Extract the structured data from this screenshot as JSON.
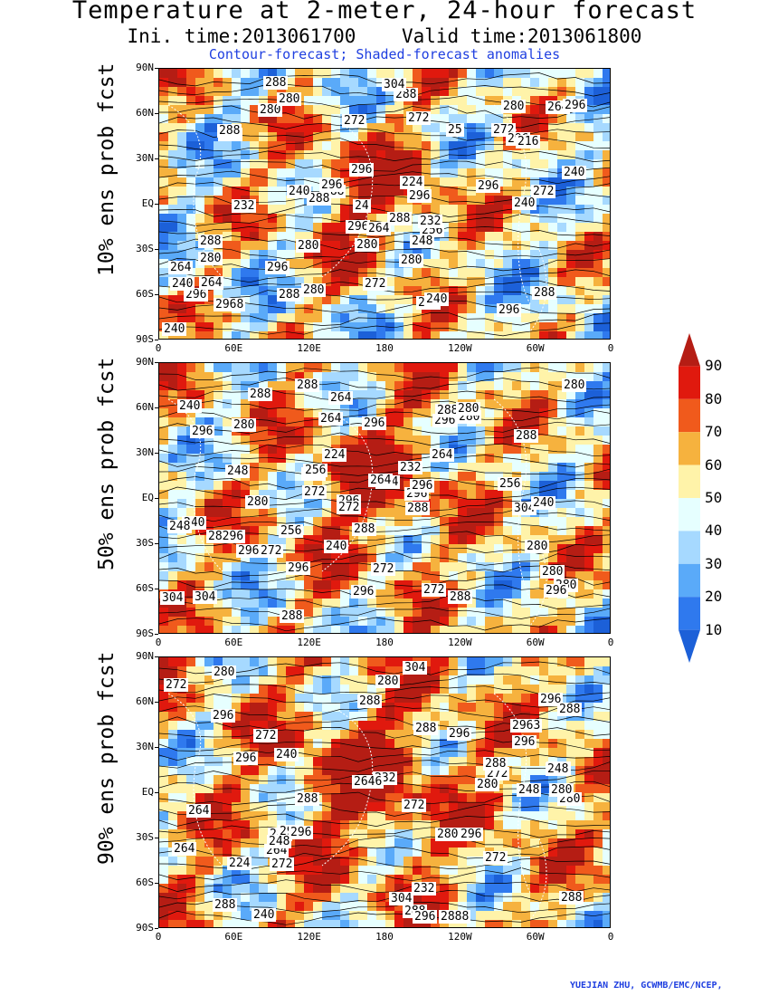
{
  "header": {
    "title": "Temperature at 2-meter, 24-hour forecast",
    "init_valid": "Ini. time:2013061700    Valid time:2013061800",
    "subtitle": "Contour-forecast; Shaded-forecast anomalies"
  },
  "axes": {
    "lat_ticks": [
      "90N",
      "60N",
      "30N",
      "EQ",
      "30S",
      "60S",
      "90S"
    ],
    "lon_ticks": [
      "0",
      "60E",
      "120E",
      "180",
      "120W",
      "60W",
      "0"
    ]
  },
  "panels": [
    {
      "label": "10% ens prob fcst",
      "contours": [
        "280",
        "272",
        "288",
        "296",
        "280",
        "288",
        "296",
        "288",
        "280",
        "264",
        "272",
        "280",
        "288",
        "296",
        "280",
        "288",
        "2968",
        "296",
        "304",
        "296",
        "288",
        "296",
        "296",
        "296",
        "296",
        "288",
        "296",
        "296",
        "288",
        "280",
        "288",
        "280",
        "272",
        "288",
        "280",
        "272",
        "264",
        "240",
        "24",
        "256",
        "264",
        "272",
        "240",
        "232",
        "240",
        "216",
        "224",
        "240",
        "232",
        "240",
        "240",
        "248",
        "25",
        "264"
      ]
    },
    {
      "label": "50% ens prob fcst",
      "contours": [
        "272",
        "272",
        "288",
        "280",
        "280",
        "264",
        "296",
        "280",
        "296",
        "288",
        "288",
        "280",
        "280",
        "296",
        "288",
        "296",
        "288",
        "304",
        "28296",
        "296",
        "304",
        "304",
        "296",
        "288",
        "296",
        "296",
        "296",
        "288",
        "296",
        "280",
        "288",
        "288",
        "280",
        "280",
        "272",
        "256",
        "264",
        "272",
        "256",
        "240",
        "248",
        "264",
        "256",
        "272",
        "240",
        "224",
        "224",
        "240",
        "240",
        "248",
        "264",
        "232"
      ]
    },
    {
      "label": "90% ens prob fcst",
      "contours": [
        "272",
        "288",
        "280",
        "296",
        "280",
        "2888",
        "272",
        "264",
        "296",
        "288",
        "280",
        "288",
        "280",
        "296",
        "2963",
        "296",
        "304",
        "288",
        "296",
        "304",
        "296",
        "296",
        "296",
        "288",
        "288",
        "288",
        "296",
        "280",
        "288",
        "288",
        "272",
        "280",
        "280",
        "272",
        "240",
        "264",
        "272",
        "264",
        "272",
        "224",
        "240",
        "248",
        "232",
        "232",
        "248",
        "248",
        "2646"
      ]
    }
  ],
  "colorbar": {
    "levels": [
      "90",
      "80",
      "70",
      "60",
      "50",
      "40",
      "30",
      "20",
      "10"
    ],
    "colors": [
      "#b51d14",
      "#e0190e",
      "#f05a1c",
      "#f6b23e",
      "#fff3a9",
      "#e6ffff",
      "#a6d9ff",
      "#5aaaf9",
      "#2f79ee",
      "#1c60d8"
    ]
  },
  "credit": "YUEJIAN ZHU, GCWMB/EMC/NCEP,"
}
